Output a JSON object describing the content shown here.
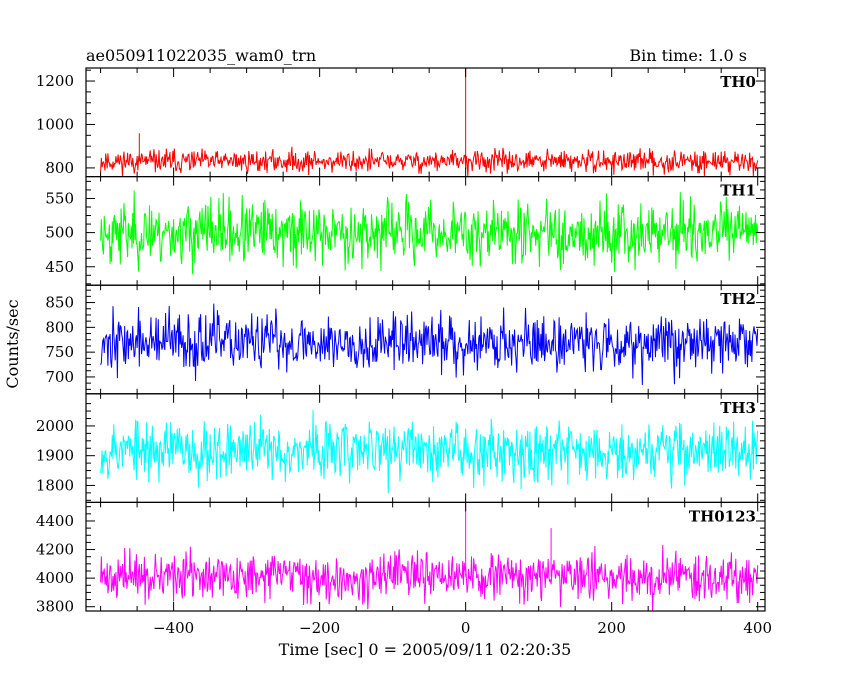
{
  "header": {
    "left": "ae050911022035_wam0_trn",
    "right": "Bin time: 1.0 s"
  },
  "chart_data": {
    "type": "line",
    "bin_time_s": 1.0,
    "title": "ae050911022035_wam0_trn",
    "xlabel": "Time [sec] 0 = 2005/09/11 02:20:35",
    "ylabel": "Counts/sec",
    "xlim": [
      -520,
      410
    ],
    "xticks": [
      -400,
      -200,
      0,
      200,
      400
    ],
    "xtick_labels": [
      "−400",
      "−200",
      "0",
      "200",
      "400"
    ],
    "x_start": -500,
    "x_end": 400,
    "grid": false,
    "panels": [
      {
        "name": "TH0",
        "color": "#ff0000",
        "ylim": [
          760,
          1260
        ],
        "yticks": [
          800,
          1000,
          1200
        ],
        "ytick_labels": [
          "800",
          "1000",
          "1200"
        ],
        "baseline": 830,
        "noise": 26,
        "seed": 11,
        "spikes": [
          {
            "x": 0,
            "y": 1260
          },
          {
            "x": -447,
            "y": 960
          }
        ]
      },
      {
        "name": "TH1",
        "color": "#00ff00",
        "ylim": [
          423,
          582
        ],
        "yticks": [
          450,
          500,
          550
        ],
        "ytick_labels": [
          "450",
          "500",
          "550"
        ],
        "baseline": 500,
        "noise": 23,
        "seed": 23,
        "spikes": []
      },
      {
        "name": "TH2",
        "color": "#0000ff",
        "ylim": [
          666,
          885
        ],
        "yticks": [
          700,
          750,
          800,
          850
        ],
        "ytick_labels": [
          "700",
          "750",
          "800",
          "850"
        ],
        "baseline": 770,
        "noise": 29,
        "seed": 37,
        "spikes": []
      },
      {
        "name": "TH3",
        "color": "#00ffff",
        "ylim": [
          1743,
          2108
        ],
        "yticks": [
          1800,
          1900,
          2000
        ],
        "ytick_labels": [
          "1800",
          "1900",
          "2000"
        ],
        "baseline": 1920,
        "noise": 50,
        "seed": 53,
        "spikes": []
      },
      {
        "name": "TH0123",
        "color": "#ff00ff",
        "ylim": [
          3770,
          4530
        ],
        "yticks": [
          3800,
          4000,
          4200,
          4400
        ],
        "ytick_labels": [
          "3800",
          "4000",
          "4200",
          "4400"
        ],
        "baseline": 4010,
        "noise": 80,
        "seed": 71,
        "spikes": [
          {
            "x": 0,
            "y": 4530
          },
          {
            "x": 117,
            "y": 4350
          }
        ]
      }
    ]
  }
}
